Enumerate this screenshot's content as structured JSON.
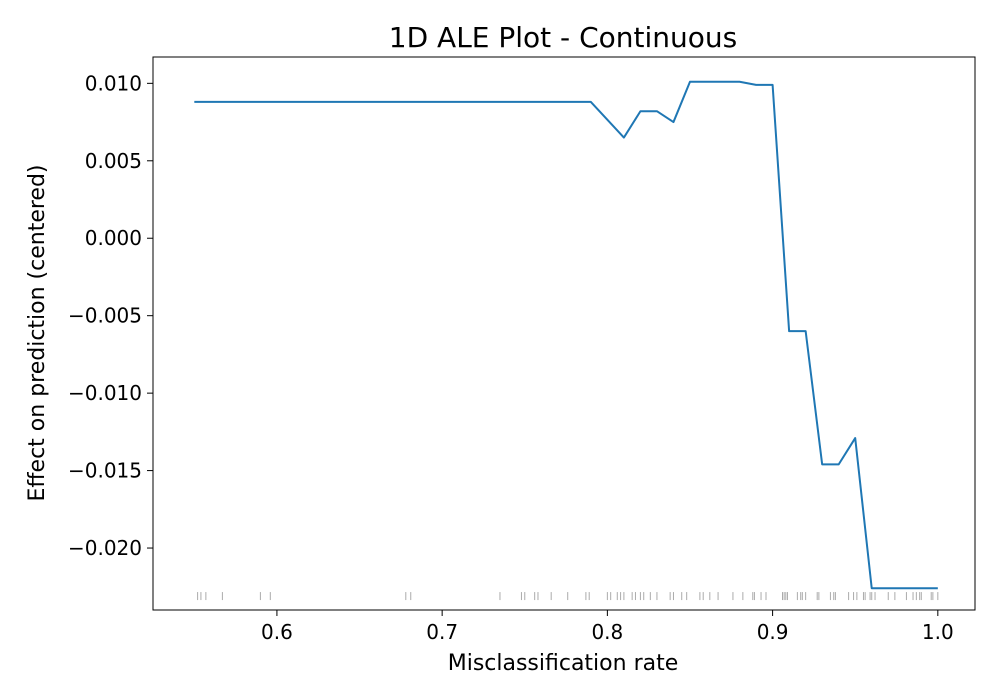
{
  "chart_data": {
    "type": "line",
    "title": "1D ALE Plot - Continuous",
    "xlabel": "Misclassification rate",
    "ylabel": "Effect on prediction (centered)",
    "xlim": [
      0.525,
      1.0225
    ],
    "ylim": [
      -0.024,
      0.0117
    ],
    "xticks": [
      0.6,
      0.7,
      0.8,
      0.9,
      1.0
    ],
    "xtick_labels": [
      "0.6",
      "0.7",
      "0.8",
      "0.9",
      "1.0"
    ],
    "yticks": [
      0.01,
      0.005,
      0.0,
      -0.005,
      -0.01,
      -0.015,
      -0.02
    ],
    "ytick_labels": [
      "0.010",
      "0.005",
      "0.000",
      "−0.005",
      "−0.010",
      "−0.015",
      "−0.020"
    ],
    "grid": false,
    "line_color": "#1f77b4",
    "rug_color": "#888888",
    "series": [
      {
        "x": [
          0.55,
          0.79,
          0.81,
          0.82,
          0.83,
          0.84,
          0.85,
          0.86,
          0.87,
          0.88,
          0.89,
          0.9,
          0.91,
          0.92,
          0.93,
          0.94,
          0.95,
          0.96,
          0.97,
          0.98,
          0.99,
          1.0
        ],
        "y": [
          0.0088,
          0.0088,
          0.0065,
          0.0082,
          0.0082,
          0.0075,
          0.0101,
          0.0101,
          0.0101,
          0.0101,
          0.0099,
          0.0099,
          -0.006,
          -0.006,
          -0.0146,
          -0.0146,
          -0.0129,
          -0.0226,
          -0.0226,
          -0.0226,
          -0.0226,
          -0.0226
        ]
      }
    ],
    "rug_y": -0.0231,
    "rug": [
      0.552,
      0.554,
      0.557,
      0.567,
      0.59,
      0.596,
      0.678,
      0.681,
      0.735,
      0.748,
      0.75,
      0.756,
      0.758,
      0.766,
      0.776,
      0.787,
      0.789,
      0.8,
      0.802,
      0.806,
      0.808,
      0.81,
      0.815,
      0.817,
      0.82,
      0.822,
      0.826,
      0.83,
      0.838,
      0.84,
      0.845,
      0.848,
      0.856,
      0.858,
      0.862,
      0.867,
      0.876,
      0.882,
      0.888,
      0.889,
      0.893,
      0.896,
      0.906,
      0.907,
      0.908,
      0.909,
      0.915,
      0.917,
      0.918,
      0.92,
      0.927,
      0.928,
      0.935,
      0.937,
      0.938,
      0.946,
      0.949,
      0.951,
      0.955,
      0.956,
      0.959,
      0.96,
      0.962,
      0.97,
      0.974,
      0.981,
      0.985,
      0.987,
      0.989,
      0.99,
      0.996,
      0.997,
      1.0
    ]
  }
}
